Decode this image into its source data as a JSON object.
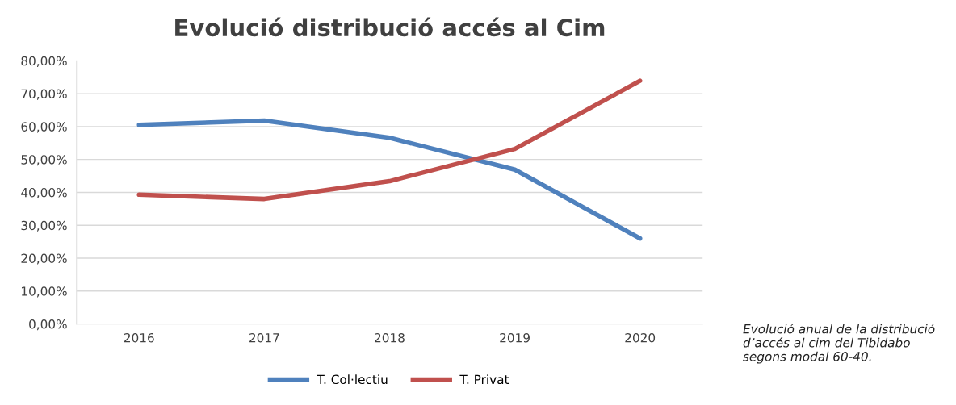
{
  "chart_data": {
    "type": "line",
    "title": "Evolució distribució accés al Cim",
    "categories": [
      "2016",
      "2017",
      "2018",
      "2019",
      "2020"
    ],
    "series": [
      {
        "name": "T. Col·lectiu",
        "color": "#4f81bd",
        "values": [
          60.5,
          61.8,
          56.6,
          46.9,
          26.0
        ]
      },
      {
        "name": "T. Privat",
        "color": "#c0504d",
        "values": [
          39.3,
          38.0,
          43.4,
          53.2,
          73.9
        ]
      }
    ],
    "ylim": [
      0,
      80
    ],
    "yticks": [
      {
        "value": 0,
        "label": "0,00%"
      },
      {
        "value": 10,
        "label": "10,00%"
      },
      {
        "value": 20,
        "label": "20,00%"
      },
      {
        "value": 30,
        "label": "30,00%"
      },
      {
        "value": 40,
        "label": "40,00%"
      },
      {
        "value": 50,
        "label": "50,00%"
      },
      {
        "value": 60,
        "label": "60,00%"
      },
      {
        "value": 70,
        "label": "70,00%"
      },
      {
        "value": 80,
        "label": "80,00%"
      }
    ],
    "grid": "y",
    "legend": "bottom",
    "marker": "none",
    "line_style": "solid",
    "annotations": [
      "Evolució anual de la distribució d’accés al cim del Tibidabo segons modal 60-40."
    ]
  }
}
